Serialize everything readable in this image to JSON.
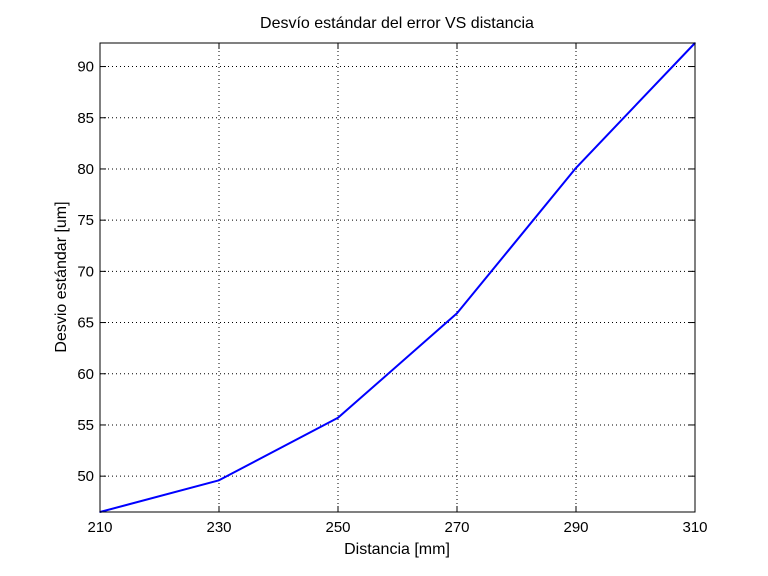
{
  "chart_data": {
    "type": "line",
    "title": "Desvío estándar del error VS distancia",
    "xlabel": "Distancia [mm]",
    "ylabel": "Desvio estándar [um]",
    "xlim": [
      210,
      310
    ],
    "ylim": [
      46.5,
      92.3
    ],
    "x_ticks": [
      210,
      230,
      250,
      270,
      290,
      310
    ],
    "y_ticks": [
      50,
      55,
      60,
      65,
      70,
      75,
      80,
      85,
      90
    ],
    "grid": true,
    "grid_style": "dotted",
    "legend": "none",
    "series": [
      {
        "color": "#0000ff",
        "x": [
          210,
          230,
          250,
          270,
          290,
          310
        ],
        "y": [
          46.5,
          49.6,
          55.7,
          65.9,
          80.1,
          92.3
        ]
      }
    ]
  }
}
